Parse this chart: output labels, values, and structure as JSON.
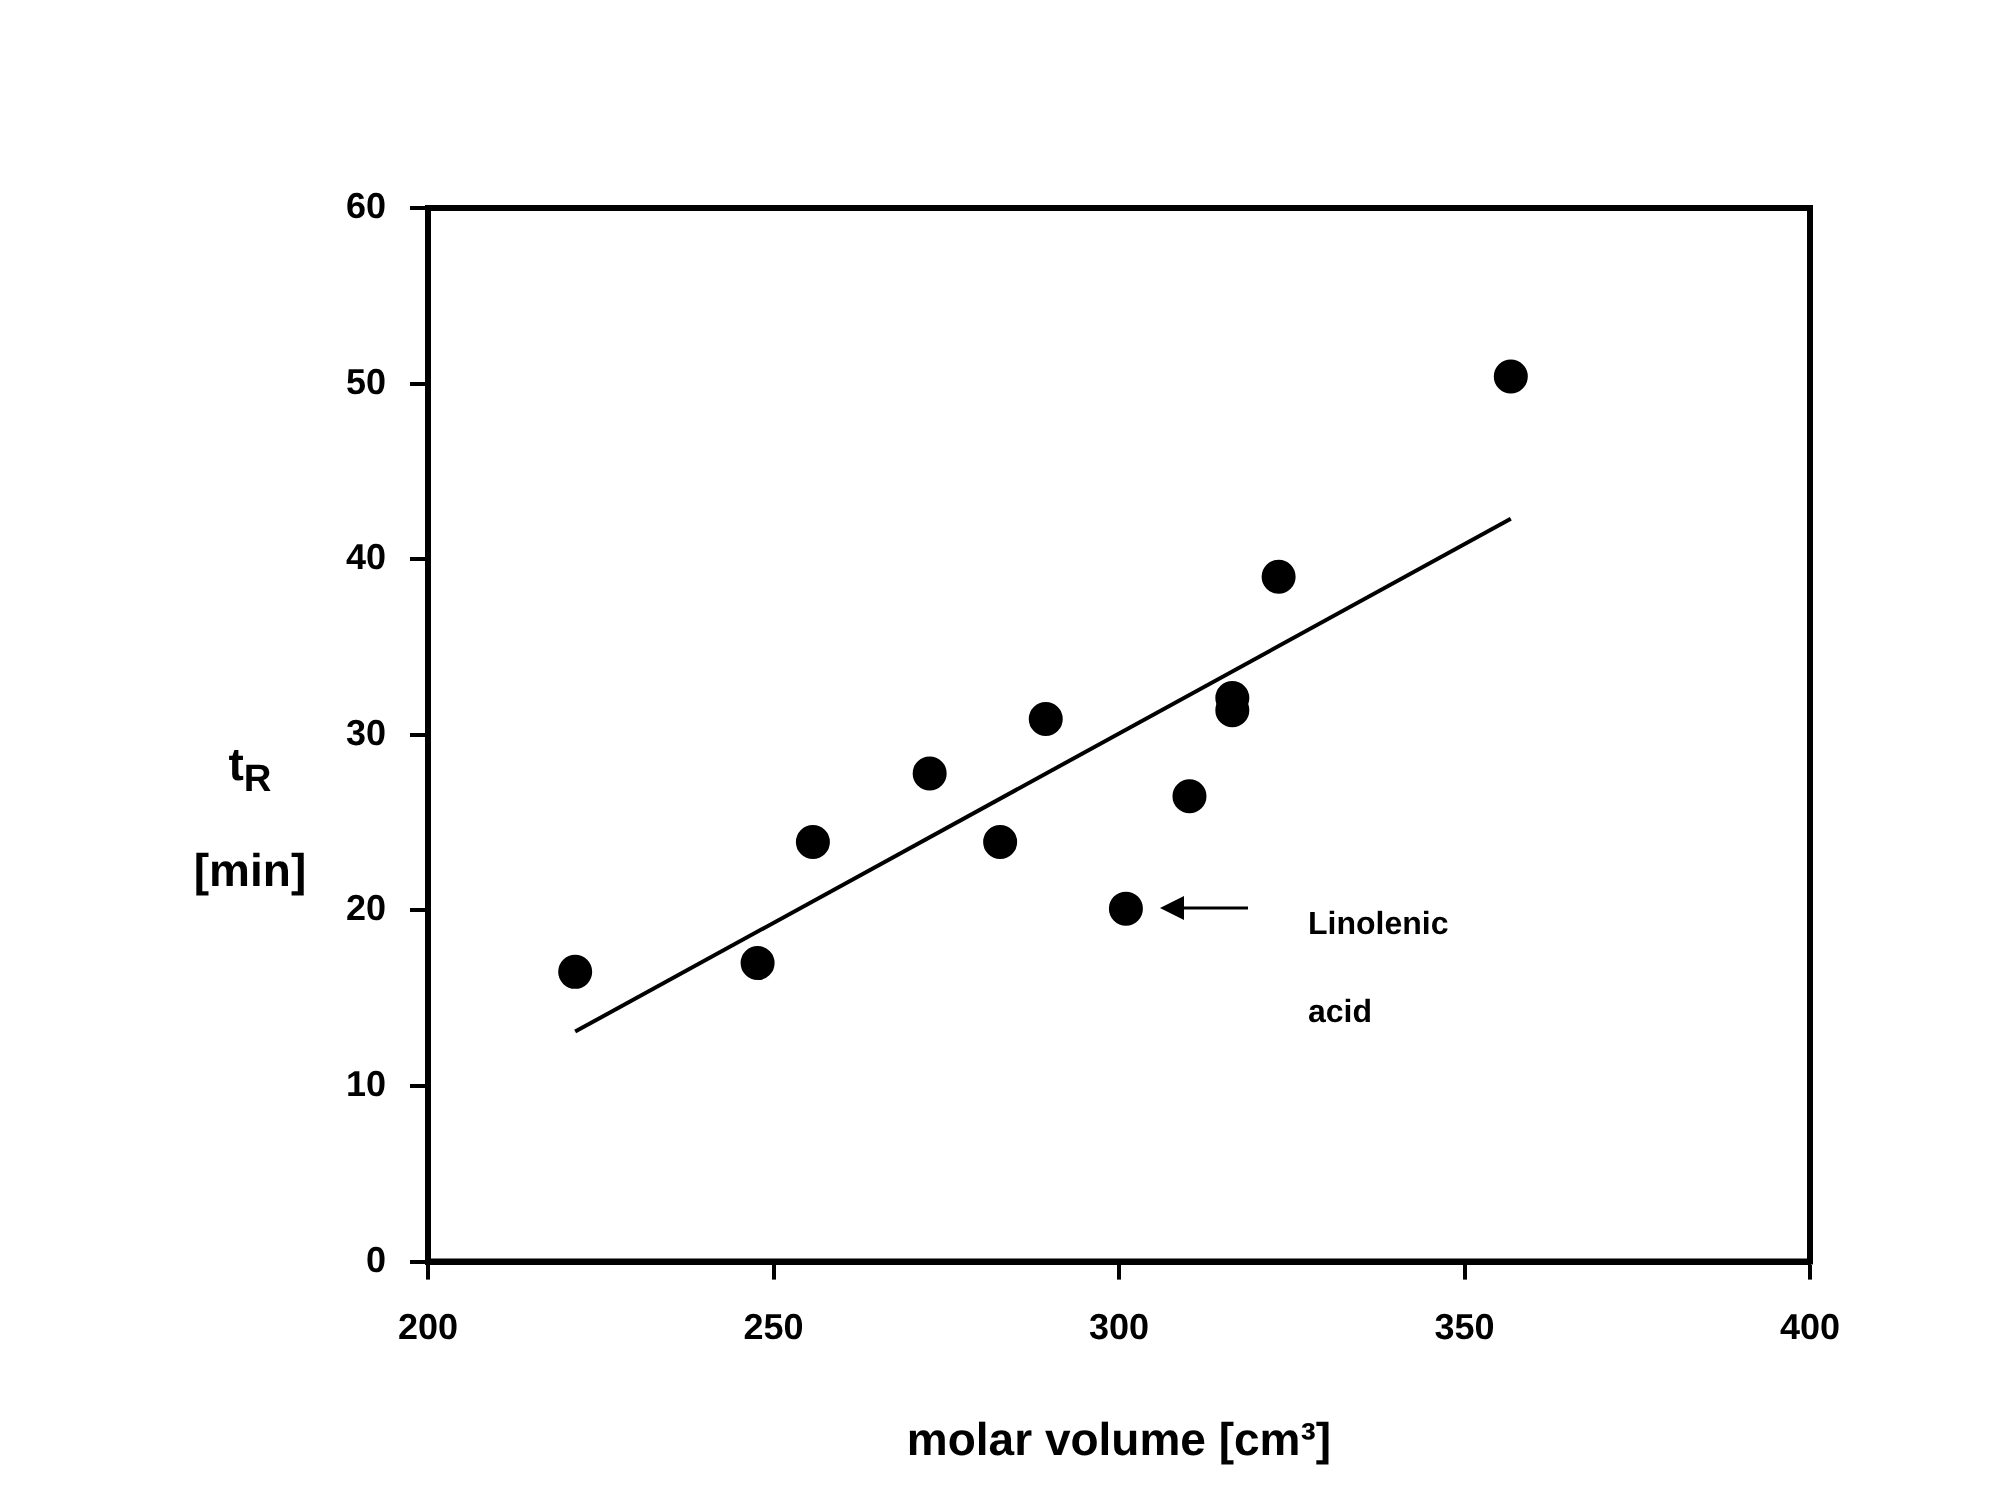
{
  "chart_data": {
    "type": "scatter",
    "xlabel": "molar volume [cm³]",
    "ylabel": "t$_{R}$ [min]",
    "xlim": [
      200,
      400
    ],
    "xticks": [
      200,
      250,
      300,
      350,
      400
    ],
    "ylim": [
      0,
      60
    ],
    "yticks": [
      0,
      10,
      20,
      30,
      40,
      50,
      60
    ],
    "grid": false,
    "legend": false,
    "marker": "circle",
    "series": [
      {
        "type": "scatter",
        "color": "#000000",
        "x": [
          221.3,
          247.7,
          255.7,
          272.6,
          282.8,
          289.4,
          301.0,
          310.2,
          316.4,
          316.4,
          323.1,
          356.7
        ],
        "values": [
          16.5,
          17.0,
          23.9,
          27.8,
          23.9,
          30.9,
          20.1,
          26.5,
          32.1,
          31.4,
          39.0,
          50.4
        ]
      },
      {
        "type": "line",
        "color": "#000000",
        "marker": "none",
        "line_style": "solid",
        "x": [
          221.3,
          356.7
        ],
        "values": [
          13.1,
          42.3
        ]
      }
    ],
    "annotations": [
      "Linolenic acid"
    ]
  }
}
